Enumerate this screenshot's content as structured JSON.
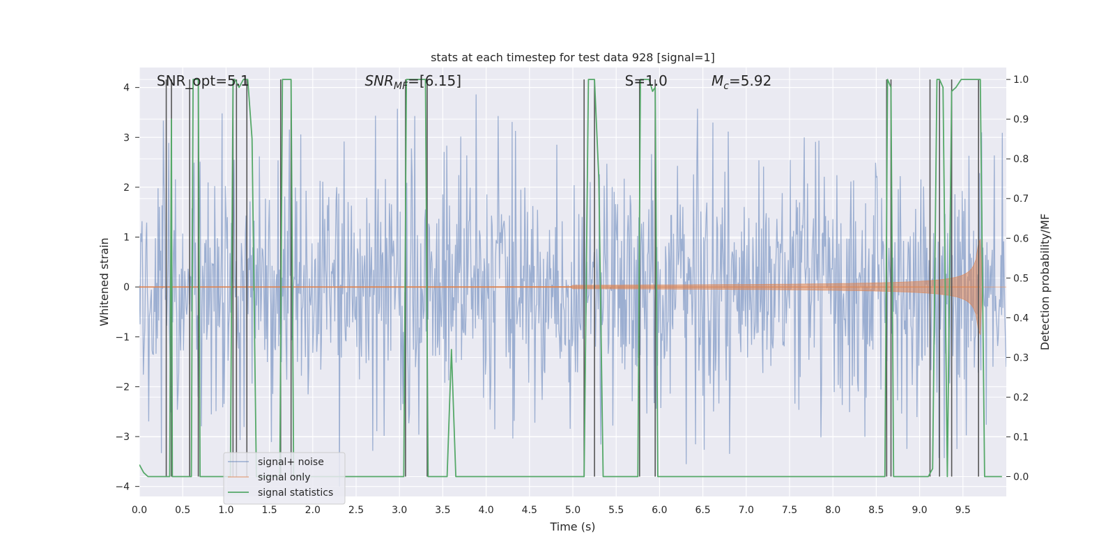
{
  "chart_data": {
    "type": "line",
    "title": "stats at each timestep for test data 928 [signal=1]",
    "xlabel": "Time (s)",
    "ylabel": "Whitened strain",
    "y2label": "Detection probability/MF",
    "xlim": [
      0.0,
      10.0
    ],
    "ylim": [
      -4.2,
      4.4
    ],
    "y2lim": [
      -0.05,
      1.03
    ],
    "xticks": [
      "0.0",
      "0.5",
      "1.0",
      "1.5",
      "2.0",
      "2.5",
      "3.0",
      "3.5",
      "4.0",
      "4.5",
      "5.0",
      "5.5",
      "6.0",
      "6.5",
      "7.0",
      "7.5",
      "8.0",
      "8.5",
      "9.0",
      "9.5"
    ],
    "yticks": [
      "4",
      "3",
      "2",
      "1",
      "0",
      "−1",
      "−2",
      "−3",
      "−4"
    ],
    "y2ticks": [
      "1.0",
      "0.9",
      "0.8",
      "0.7",
      "0.6",
      "0.5",
      "0.4",
      "0.3",
      "0.2",
      "0.1",
      "0.0"
    ],
    "grid": true,
    "legend_position": "lower-left",
    "annotations": [
      {
        "text": "SNR_opt=5.1",
        "x": 0.2
      },
      {
        "text": "SNR",
        "sub": "MF",
        "rest": "=[6.15]",
        "x": 2.6
      },
      {
        "text": "S",
        "rest": "=1.0",
        "x": 5.6
      },
      {
        "text": "M",
        "sub": "c",
        "rest": "=5.92",
        "x": 6.6
      }
    ],
    "series": [
      {
        "name": "signal+ noise",
        "color": "#4c72b0",
        "description_kind": "noise",
        "typical_envelope": 1.6,
        "peak_envelope": 3.6
      },
      {
        "name": "signal only",
        "color": "#dd8452",
        "description_kind": "chirp",
        "chirp_end": 9.7,
        "chirp_peak": 1.2
      },
      {
        "name": "signal statistics",
        "color": "#55a868",
        "x": [
          0.0,
          0.05,
          0.1,
          0.32,
          0.35,
          0.37,
          0.38,
          0.5,
          0.55,
          0.58,
          0.6,
          0.62,
          0.65,
          0.68,
          0.7,
          0.75,
          1.05,
          1.08,
          1.1,
          1.15,
          1.2,
          1.25,
          1.3,
          1.35,
          1.5,
          1.62,
          1.65,
          1.7,
          1.75,
          1.78,
          1.85,
          2.0,
          3.05,
          3.08,
          3.1,
          3.2,
          3.3,
          3.33,
          3.35,
          3.5,
          3.55,
          3.6,
          3.65,
          3.7,
          4.0,
          5.0,
          5.13,
          5.18,
          5.22,
          5.25,
          5.3,
          5.35,
          5.4,
          5.6,
          5.75,
          5.78,
          5.82,
          5.88,
          5.92,
          5.95,
          5.98,
          6.0,
          6.5,
          6.55,
          6.6,
          8.0,
          8.6,
          8.63,
          8.67,
          8.7,
          8.75,
          9.0,
          9.1,
          9.15,
          9.2,
          9.23,
          9.27,
          9.32,
          9.37,
          9.42,
          9.48,
          9.55,
          9.65,
          9.7,
          9.75,
          9.8,
          9.95
        ],
        "y": [
          0.03,
          0.01,
          0.0,
          0.0,
          0.0,
          0.9,
          0.0,
          0.0,
          0.0,
          0.0,
          0.0,
          1.0,
          1.0,
          1.0,
          0.0,
          0.0,
          0.0,
          1.0,
          1.0,
          0.98,
          1.0,
          1.0,
          0.85,
          0.0,
          0.0,
          0.0,
          1.0,
          1.0,
          1.0,
          0.0,
          0.0,
          0.0,
          0.0,
          1.0,
          1.0,
          1.0,
          1.0,
          0.0,
          0.0,
          0.0,
          0.0,
          0.32,
          0.0,
          0.0,
          0.0,
          0.0,
          0.0,
          1.0,
          1.0,
          1.0,
          0.75,
          0.0,
          0.0,
          0.0,
          0.0,
          1.0,
          1.0,
          1.0,
          0.97,
          0.98,
          0.0,
          0.0,
          0.0,
          0.0,
          0.0,
          0.0,
          0.0,
          1.0,
          0.98,
          0.0,
          0.0,
          0.0,
          0.0,
          0.02,
          1.0,
          1.0,
          0.98,
          0.0,
          0.97,
          0.98,
          1.0,
          1.0,
          1.0,
          1.0,
          0.0,
          0.0,
          0.0
        ]
      },
      {
        "name": "",
        "color": "#555555",
        "description_kind": "vertical-markers",
        "x": [
          0.31,
          0.37,
          0.58,
          0.68,
          1.08,
          1.12,
          1.24,
          1.63,
          1.75,
          3.07,
          3.32,
          5.13,
          5.25,
          5.77,
          5.95,
          8.62,
          8.67,
          9.12,
          9.23,
          9.37,
          9.68
        ]
      }
    ]
  }
}
